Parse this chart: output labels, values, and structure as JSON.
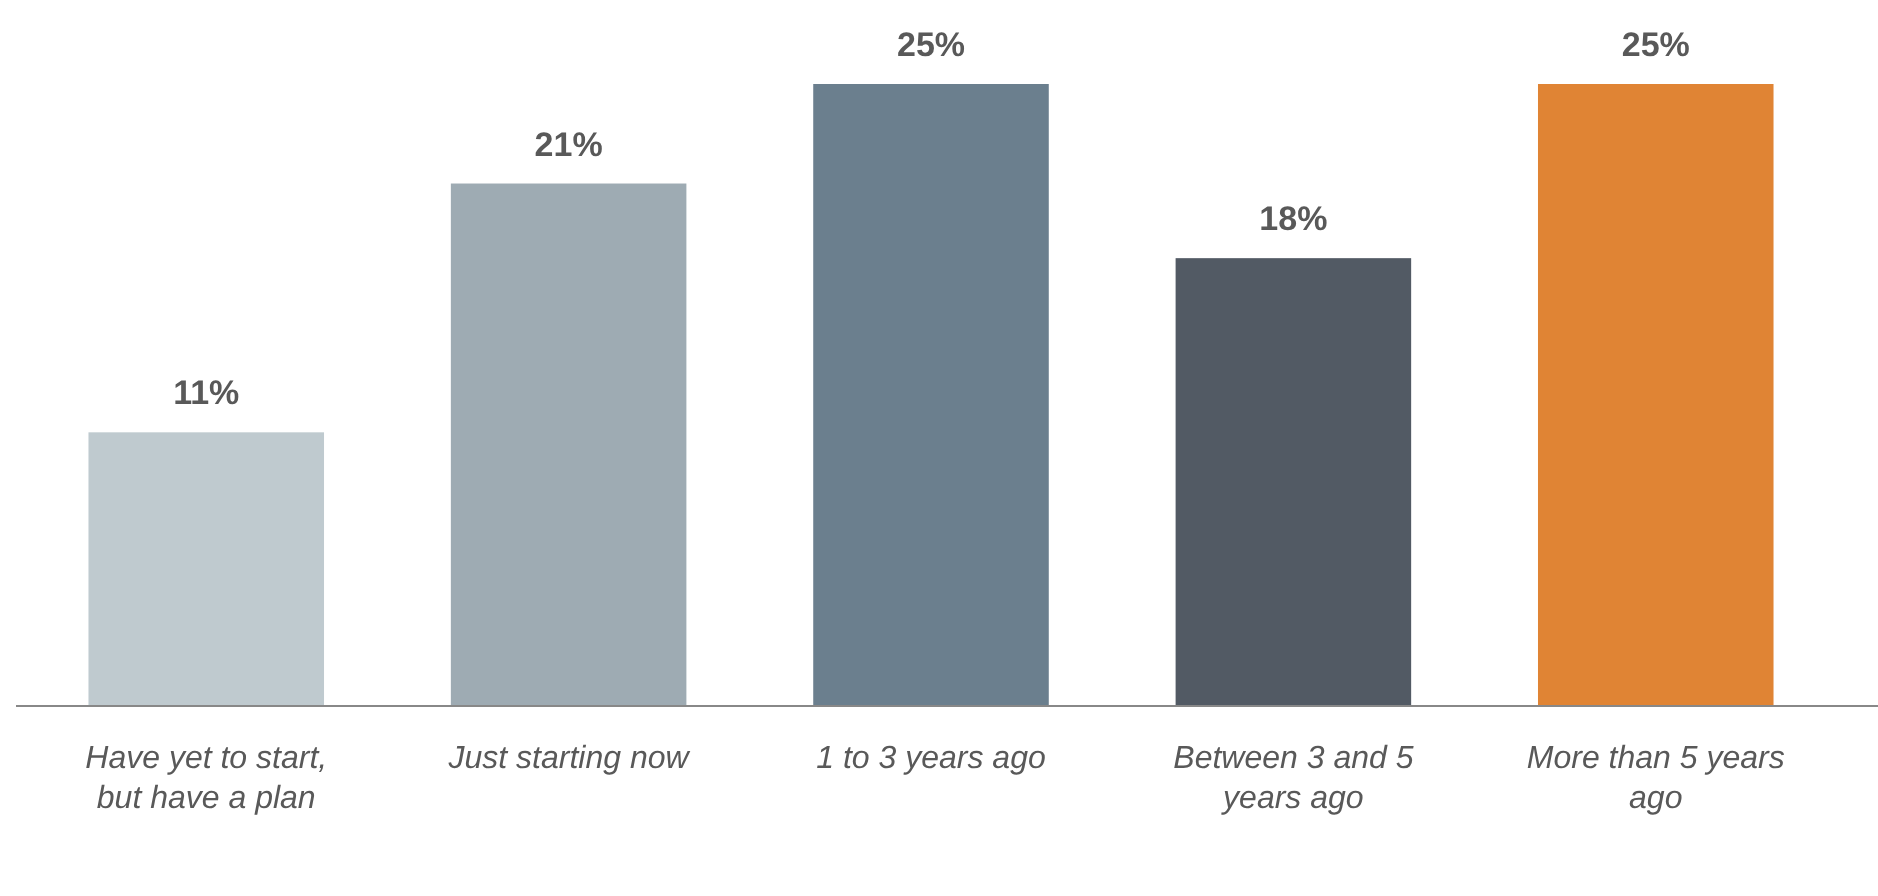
{
  "chart_data": {
    "type": "bar",
    "categories": [
      "Have yet to start, but have a plan",
      "Just starting now",
      "1 to 3 years ago",
      "Between 3 and 5 years ago",
      "More than 5 years ago"
    ],
    "values": [
      11,
      21,
      25,
      18,
      25
    ],
    "value_labels": [
      "11%",
      "21%",
      "25%",
      "18%",
      "25%"
    ],
    "colors": [
      "#bfcacf",
      "#9eabb3",
      "#6b7f8e",
      "#525a64",
      "#e08434"
    ]
  }
}
